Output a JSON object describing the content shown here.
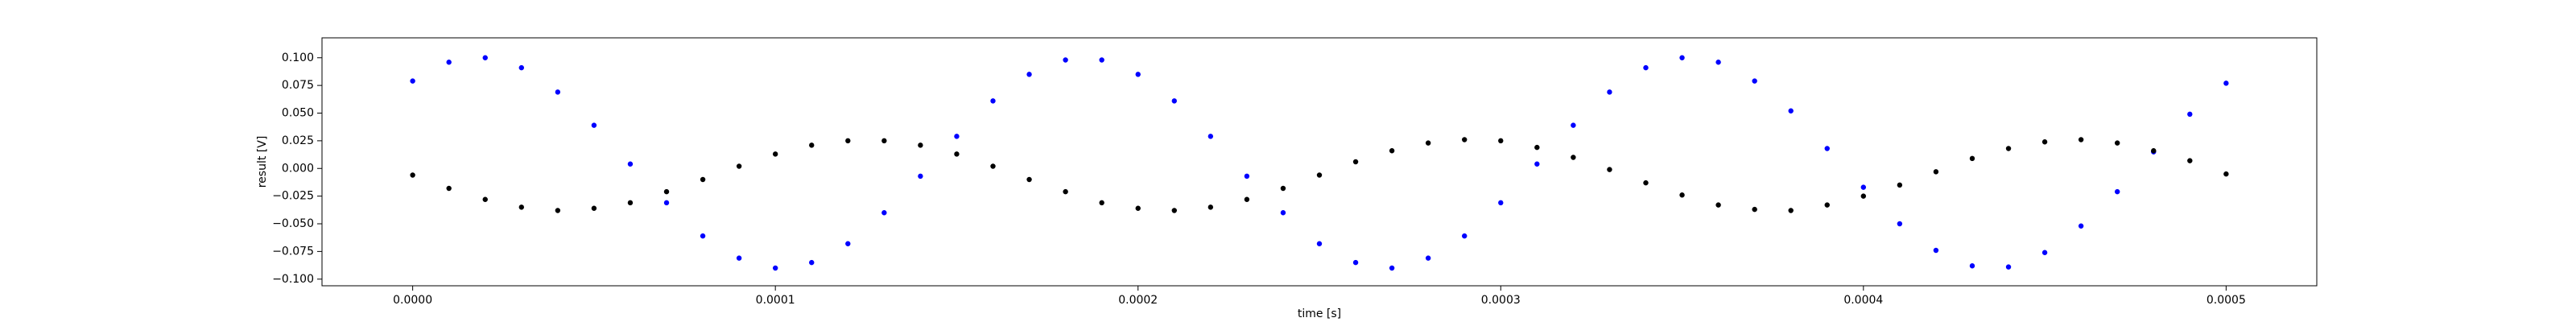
{
  "chart_data": {
    "type": "scatter",
    "xlabel": "time [s]",
    "ylabel": "result [V]",
    "x": [
      0,
      1e-05,
      2e-05,
      3e-05,
      4e-05,
      5e-05,
      6e-05,
      7e-05,
      8e-05,
      9e-05,
      0.0001,
      0.00011,
      0.00012,
      0.00013,
      0.00014,
      0.00015,
      0.00016,
      0.00017,
      0.00018,
      0.00019,
      0.0002,
      0.00021,
      0.00022,
      0.00023,
      0.00024,
      0.00025,
      0.00026,
      0.00027,
      0.00028,
      0.00029,
      0.0003,
      0.00031,
      0.00032,
      0.00033,
      0.00034,
      0.00035,
      0.00036,
      0.00037,
      0.00038,
      0.00039,
      0.0004,
      0.00041,
      0.00042,
      0.00043,
      0.00044,
      0.00045,
      0.00046,
      0.00047,
      0.00048,
      0.00049,
      0.0005
    ],
    "series": [
      {
        "color": "#0000ff",
        "values": [
          0.079,
          0.096,
          0.1,
          0.091,
          0.069,
          0.039,
          0.004,
          -0.031,
          -0.061,
          -0.081,
          -0.09,
          -0.085,
          -0.068,
          -0.04,
          -0.007,
          0.029,
          0.061,
          0.085,
          0.098,
          0.098,
          0.085,
          0.061,
          0.029,
          -0.007,
          -0.04,
          -0.068,
          -0.085,
          -0.09,
          -0.081,
          -0.061,
          -0.031,
          0.004,
          0.039,
          0.069,
          0.091,
          0.1,
          0.096,
          0.079,
          0.052,
          0.018,
          -0.017,
          -0.05,
          -0.074,
          -0.088,
          -0.089,
          -0.076,
          -0.052,
          -0.021,
          0.015,
          0.049,
          0.077
        ]
      },
      {
        "color": "#000000",
        "values": [
          -0.006,
          -0.018,
          -0.028,
          -0.035,
          -0.038,
          -0.036,
          -0.031,
          -0.021,
          -0.01,
          0.002,
          0.013,
          0.021,
          0.025,
          0.025,
          0.021,
          0.013,
          0.002,
          -0.01,
          -0.021,
          -0.031,
          -0.036,
          -0.038,
          -0.035,
          -0.028,
          -0.018,
          -0.006,
          0.006,
          0.016,
          0.023,
          0.026,
          0.025,
          0.019,
          0.01,
          -0.001,
          -0.013,
          -0.024,
          -0.033,
          -0.037,
          -0.038,
          -0.033,
          -0.025,
          -0.015,
          -0.003,
          0.009,
          0.018,
          0.024,
          0.026,
          0.023,
          0.016,
          0.007,
          -0.005
        ]
      }
    ],
    "xlim": [
      -2.5e-05,
      0.000525
    ],
    "ylim": [
      -0.106,
      0.118
    ],
    "xticks": [
      {
        "value": 0,
        "label": "0.0000"
      },
      {
        "value": 0.0001,
        "label": "0.0001"
      },
      {
        "value": 0.0002,
        "label": "0.0002"
      },
      {
        "value": 0.0003,
        "label": "0.0003"
      },
      {
        "value": 0.0004,
        "label": "0.0004"
      },
      {
        "value": 0.0005,
        "label": "0.0005"
      }
    ],
    "yticks": [
      {
        "value": -0.1,
        "label": "−0.100"
      },
      {
        "value": -0.075,
        "label": "−0.075"
      },
      {
        "value": -0.05,
        "label": "−0.050"
      },
      {
        "value": -0.025,
        "label": "−0.025"
      },
      {
        "value": 0,
        "label": "0.000"
      },
      {
        "value": 0.025,
        "label": "0.025"
      },
      {
        "value": 0.05,
        "label": "0.050"
      },
      {
        "value": 0.075,
        "label": "0.075"
      },
      {
        "value": 0.1,
        "label": "0.100"
      }
    ]
  }
}
